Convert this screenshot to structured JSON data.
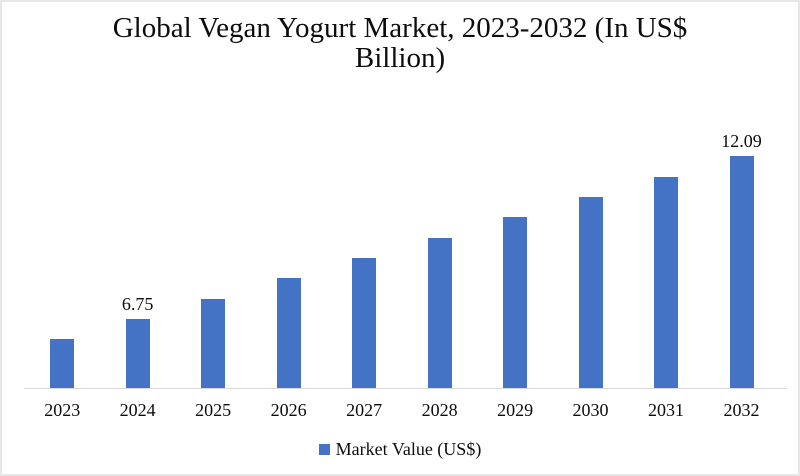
{
  "title": {
    "line1": "Global Vegan Yogurt Market, 2023-2032 (In US$",
    "line2": "Billion)"
  },
  "legend": {
    "label": "Market Value (US$)",
    "swatch_color": "#4472C4"
  },
  "chart_data": {
    "type": "bar",
    "title": "Global Vegan Yogurt Market, 2023-2032 (In US$ Billion)",
    "categories": [
      "2023",
      "2024",
      "2025",
      "2026",
      "2027",
      "2028",
      "2029",
      "2030",
      "2031",
      "2032"
    ],
    "series": [
      {
        "name": "Market Value (US$)",
        "values": [
          6.08,
          6.75,
          7.42,
          8.09,
          8.75,
          9.42,
          10.09,
          10.76,
          11.42,
          12.09
        ]
      }
    ],
    "data_labels": {
      "2024": "6.75",
      "2032": "12.09"
    },
    "values_note": "Only 6.75 (2024) and 12.09 (2032) are labeled in the chart; other values estimated from bar heights.",
    "bar_color": "#4472C4",
    "axis_line_color": "#D9D9D9",
    "xlabel": "",
    "ylabel": "",
    "grid": false,
    "legend_position": "bottom",
    "ylim_estimated": [
      4.49,
      12.7
    ]
  }
}
